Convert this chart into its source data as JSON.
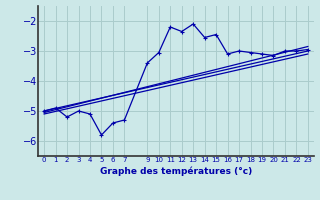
{
  "xlabel": "Graphe des températures (°c)",
  "background_color": "#cce8e8",
  "grid_color": "#aacccc",
  "line_color": "#0000aa",
  "ylim": [
    -6.5,
    -1.5
  ],
  "xlim": [
    -0.5,
    23.5
  ],
  "yticks": [
    -6,
    -5,
    -4,
    -3,
    -2
  ],
  "xtick_positions": [
    0,
    1,
    2,
    3,
    4,
    5,
    6,
    7,
    9,
    10,
    11,
    12,
    13,
    14,
    15,
    16,
    17,
    18,
    19,
    20,
    21,
    22,
    23
  ],
  "xtick_labels": [
    "0",
    "1",
    "2",
    "3",
    "4",
    "5",
    "6",
    "7",
    "9",
    "10",
    "11",
    "12",
    "13",
    "14",
    "15",
    "16",
    "17",
    "18",
    "19",
    "20",
    "21",
    "22",
    "23"
  ],
  "measured_x": [
    0,
    1,
    2,
    3,
    4,
    5,
    6,
    7,
    9,
    10,
    11,
    12,
    13,
    14,
    15,
    16,
    17,
    18,
    19,
    20,
    21,
    22,
    23
  ],
  "measured_y": [
    -5.0,
    -4.9,
    -5.2,
    -5.0,
    -5.1,
    -5.8,
    -5.4,
    -5.3,
    -3.4,
    -3.05,
    -2.2,
    -2.35,
    -2.1,
    -2.55,
    -2.45,
    -3.1,
    -3.0,
    -3.05,
    -3.1,
    -3.15,
    -3.0,
    -3.0,
    -2.95
  ],
  "trend1_x": [
    0,
    23
  ],
  "trend1_y": [
    -5.0,
    -3.0
  ],
  "trend2_x": [
    0,
    23
  ],
  "trend2_y": [
    -5.05,
    -2.85
  ],
  "trend3_x": [
    0,
    23
  ],
  "trend3_y": [
    -5.1,
    -3.1
  ],
  "trend4_x": [
    5,
    23
  ],
  "trend4_y": [
    -5.0,
    -3.0
  ]
}
